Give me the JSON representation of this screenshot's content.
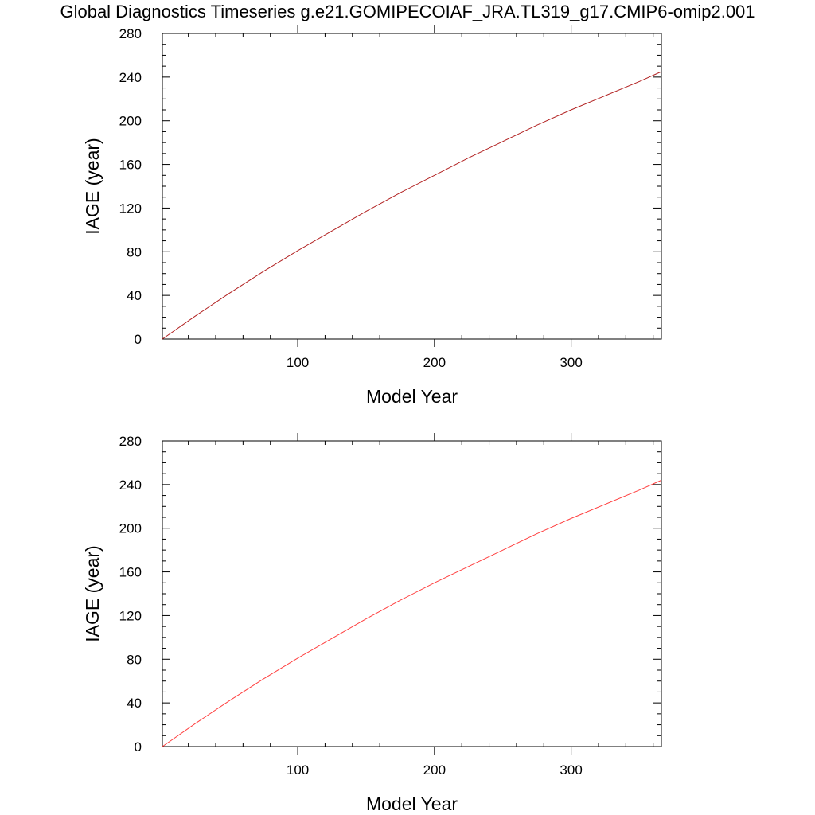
{
  "title": "Global Diagnostics Timeseries g.e21.GOMIPECOIAF_JRA.TL319_g17.CMIP6-omip2.001",
  "colors": {
    "panel1_line": "#b22222",
    "panel2_line": "#ff4040",
    "axis": "#000000"
  },
  "chart_data": [
    {
      "type": "line",
      "xlabel": "Model Year",
      "ylabel": "IAGE (year)",
      "xlim": [
        1,
        366
      ],
      "ylim": [
        0,
        280
      ],
      "xticks": [
        100,
        200,
        300
      ],
      "yticks": [
        0,
        40,
        80,
        120,
        160,
        200,
        240,
        280
      ],
      "grid": false,
      "series": [
        {
          "color": "#b22222",
          "x": [
            1,
            25,
            50,
            75,
            100,
            125,
            150,
            175,
            200,
            225,
            250,
            275,
            300,
            325,
            350,
            366
          ],
          "y": [
            0,
            21,
            42,
            62,
            81,
            99,
            117,
            134,
            150,
            166,
            181,
            196,
            210,
            223,
            236,
            245
          ]
        }
      ]
    },
    {
      "type": "line",
      "xlabel": "Model Year",
      "ylabel": "IAGE (year)",
      "xlim": [
        1,
        366
      ],
      "ylim": [
        0,
        280
      ],
      "xticks": [
        100,
        200,
        300
      ],
      "yticks": [
        0,
        40,
        80,
        120,
        160,
        200,
        240,
        280
      ],
      "grid": false,
      "series": [
        {
          "color": "#ff4040",
          "x": [
            1,
            25,
            50,
            75,
            100,
            125,
            150,
            175,
            200,
            225,
            250,
            275,
            300,
            325,
            350,
            366
          ],
          "y": [
            0,
            21,
            42,
            62,
            81,
            99,
            117,
            134,
            150,
            165,
            180,
            195,
            209,
            222,
            235,
            244
          ]
        }
      ]
    }
  ]
}
